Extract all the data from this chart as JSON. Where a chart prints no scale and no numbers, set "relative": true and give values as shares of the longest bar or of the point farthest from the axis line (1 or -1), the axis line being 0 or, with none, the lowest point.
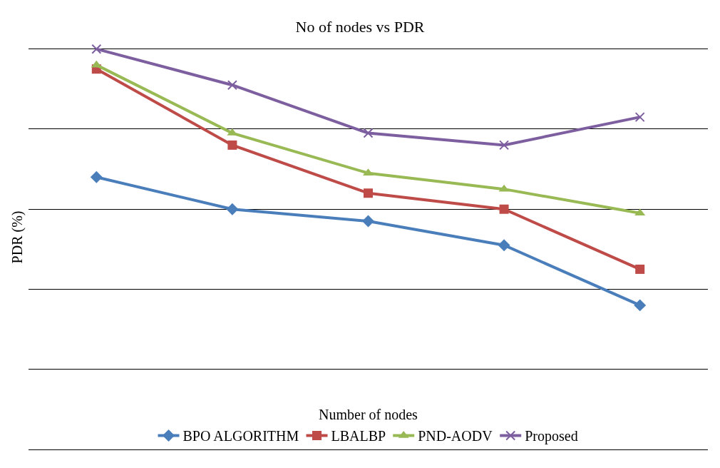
{
  "chart_data": {
    "type": "line",
    "title": "No of nodes vs PDR",
    "xlabel": "Number of nodes",
    "ylabel": "PDR (%)",
    "relative": true,
    "categories": [
      null,
      null,
      null,
      null,
      null
    ],
    "grid": "y",
    "legend": "bottom",
    "line_style": "solid",
    "series": [
      {
        "name": "BPO ALGORITHM",
        "color": "#4a7ebb",
        "marker": "diamond",
        "values": [
          0.68,
          0.6,
          0.57,
          0.51,
          0.36
        ]
      },
      {
        "name": "LBALBP",
        "color": "#be4b48",
        "marker": "square",
        "values": [
          0.95,
          0.76,
          0.64,
          0.6,
          0.45
        ]
      },
      {
        "name": "PND-AODV",
        "color": "#98b954",
        "marker": "triangle",
        "values": [
          0.96,
          0.79,
          0.69,
          0.65,
          0.59
        ]
      },
      {
        "name": "Proposed",
        "color": "#7d5fa0",
        "marker": "cross",
        "values": [
          1.0,
          0.91,
          0.79,
          0.76,
          0.83
        ]
      }
    ]
  }
}
